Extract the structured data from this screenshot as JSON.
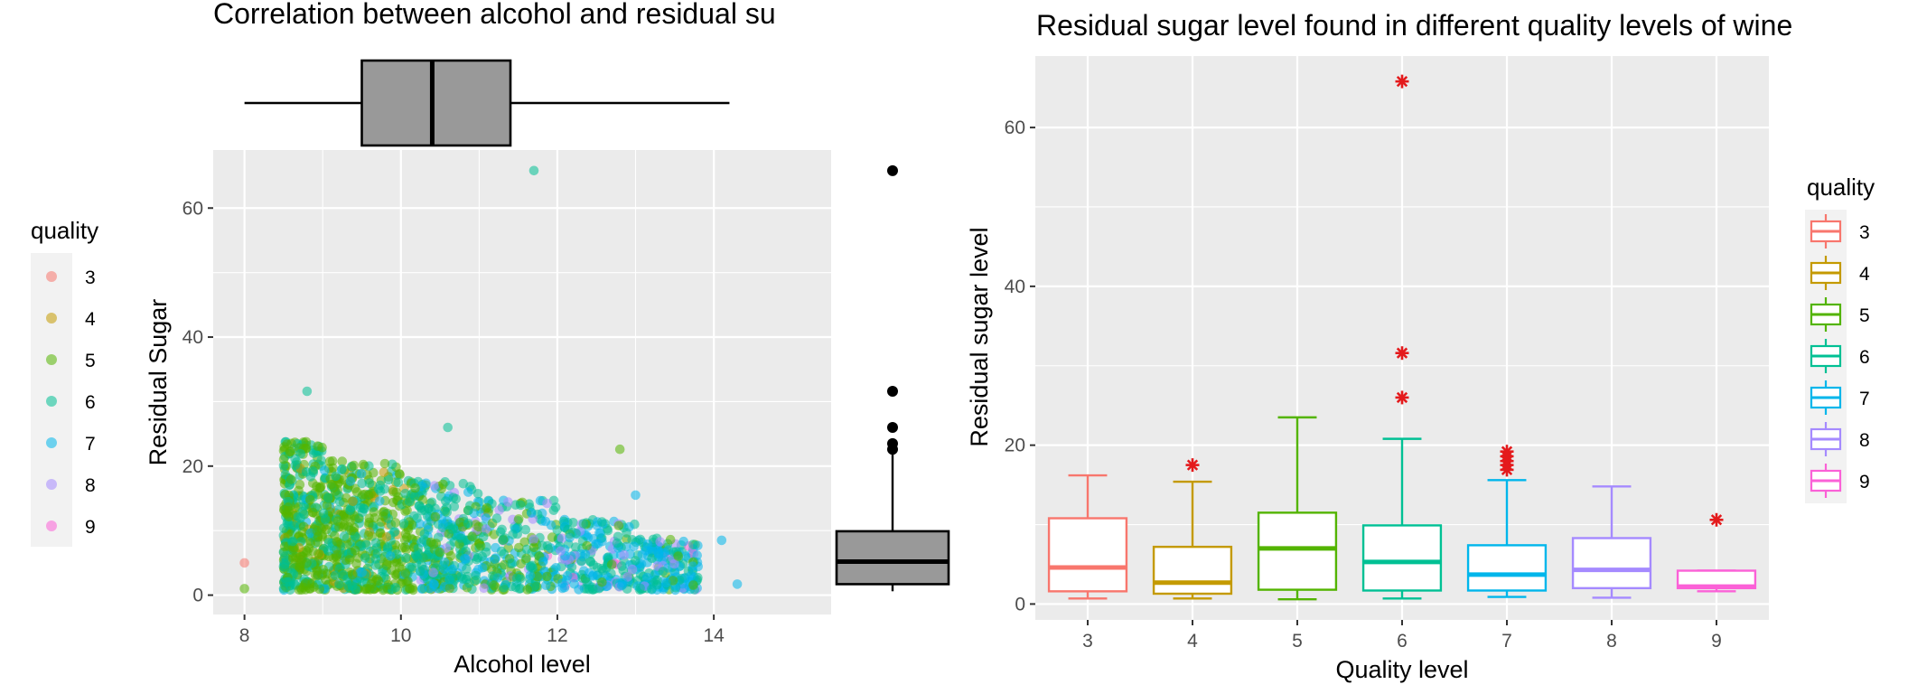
{
  "chart_data": [
    {
      "type": "scatter",
      "title": "Correlation between alcohol and residual su",
      "xlabel": "Alcohol level",
      "ylabel": "Residual Sugar",
      "xlim": [
        7.6,
        15.5
      ],
      "ylim": [
        -3,
        69
      ],
      "x_ticks": [
        "8",
        "10",
        "12",
        "14"
      ],
      "y_ticks": [
        "0",
        "20",
        "40",
        "60"
      ],
      "legend": {
        "title": "quality",
        "position": "left",
        "entries": [
          "3",
          "4",
          "5",
          "6",
          "7",
          "8",
          "9"
        ],
        "colors": [
          "#F8766D",
          "#C49A00",
          "#53B400",
          "#00C094",
          "#00B6EB",
          "#A58AFF",
          "#FB61D7"
        ]
      },
      "marginal_boxplot_x": {
        "min": 8.0,
        "q1": 9.5,
        "median": 10.4,
        "q3": 11.4,
        "max": 14.2
      },
      "marginal_boxplot_y": {
        "min": 0.6,
        "q1": 1.7,
        "median": 5.2,
        "q3": 9.9,
        "max": 22.0,
        "outliers": [
          22.6,
          23.5,
          26.0,
          31.6,
          65.8
        ]
      },
      "highlight_points": [
        {
          "x": 11.7,
          "y": 65.8,
          "quality": "6"
        },
        {
          "x": 8.8,
          "y": 31.6,
          "quality": "6"
        },
        {
          "x": 10.6,
          "y": 26.0,
          "quality": "6"
        },
        {
          "x": 12.8,
          "y": 22.6,
          "quality": "5"
        },
        {
          "x": 8.6,
          "y": 23.5,
          "quality": "5"
        },
        {
          "x": 8.0,
          "y": 5.0,
          "quality": "3"
        },
        {
          "x": 8.0,
          "y": 1.0,
          "quality": "5"
        },
        {
          "x": 14.1,
          "y": 8.5,
          "quality": "7"
        },
        {
          "x": 14.3,
          "y": 1.7,
          "quality": "7"
        },
        {
          "x": 13.0,
          "y": 15.5,
          "quality": "7"
        }
      ]
    },
    {
      "type": "box",
      "title": "Residual sugar level found in different quality levels of wine",
      "xlabel": "Quality level",
      "ylabel": "Residual sugar level",
      "categories": [
        "3",
        "4",
        "5",
        "6",
        "7",
        "8",
        "9"
      ],
      "ylim": [
        -2,
        69
      ],
      "y_ticks": [
        "0",
        "20",
        "40",
        "60"
      ],
      "colors": [
        "#F8766D",
        "#C49A00",
        "#53B400",
        "#00C094",
        "#00B6EB",
        "#A58AFF",
        "#FB61D7"
      ],
      "outlier_color": "#E41A1C",
      "boxes": [
        {
          "min": 0.7,
          "q1": 1.6,
          "median": 4.6,
          "q3": 10.8,
          "max": 16.2,
          "outliers": []
        },
        {
          "min": 0.7,
          "q1": 1.3,
          "median": 2.7,
          "q3": 7.2,
          "max": 15.4,
          "outliers": [
            17.5
          ]
        },
        {
          "min": 0.6,
          "q1": 1.8,
          "median": 7.0,
          "q3": 11.5,
          "max": 23.5,
          "outliers": []
        },
        {
          "min": 0.7,
          "q1": 1.7,
          "median": 5.3,
          "q3": 9.9,
          "max": 20.8,
          "outliers": [
            26.0,
            31.6,
            65.8
          ]
        },
        {
          "min": 0.9,
          "q1": 1.7,
          "median": 3.7,
          "q3": 7.4,
          "max": 15.6,
          "outliers": [
            16.9,
            17.5,
            18.0,
            18.6,
            19.2
          ]
        },
        {
          "min": 0.8,
          "q1": 2.0,
          "median": 4.3,
          "q3": 8.3,
          "max": 14.8,
          "outliers": []
        },
        {
          "min": 1.6,
          "q1": 2.0,
          "median": 2.2,
          "q3": 4.2,
          "max": 4.2,
          "outliers": [
            10.6
          ]
        }
      ],
      "legend": {
        "title": "quality",
        "position": "right",
        "entries": [
          "3",
          "4",
          "5",
          "6",
          "7",
          "8",
          "9"
        ]
      }
    }
  ]
}
